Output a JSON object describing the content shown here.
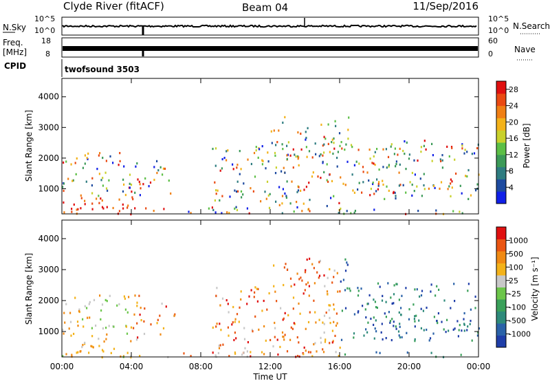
{
  "header": {
    "station": "Clyde River (fitACF)",
    "beam": "Beam 04",
    "date": "11/Sep/2016"
  },
  "strip_panels": {
    "nsky": {
      "label": "N.Sky",
      "ticks": [
        "10^5",
        "10^0"
      ]
    },
    "nsearch": {
      "label": "N.Search",
      "ticks": [
        "10^5",
        "10^0"
      ]
    },
    "freq": {
      "label_line1": "Freq.",
      "label_line2": "[MHz]",
      "ticks": [
        "18",
        "8"
      ]
    },
    "nave": {
      "label": "Nave",
      "ticks": [
        "60",
        "0"
      ]
    },
    "cpid": {
      "label": "CPID",
      "value": "twofsound 3503"
    }
  },
  "chart_data": [
    {
      "type": "heatmap",
      "name": "power",
      "ylabel": "Slant Range [km]",
      "xlabel": "Time UT",
      "x_ticks": [
        "00:00",
        "04:00",
        "08:00",
        "12:00",
        "16:00",
        "20:00",
        "00:00"
      ],
      "xlim_hours": [
        0,
        24
      ],
      "ylim_km": [
        180,
        4600
      ],
      "y_ticks": [
        1000,
        2000,
        3000,
        4000
      ],
      "colorbar": {
        "label": "Power [dB]",
        "range": [
          0,
          30
        ],
        "ticks": [
          "4",
          "8",
          "12",
          "16",
          "20",
          "24",
          "28"
        ],
        "colors": [
          "#1020e8",
          "#1e4ba0",
          "#2e7c80",
          "#3c9a58",
          "#5cbf46",
          "#c9d12c",
          "#f3b21a",
          "#f07f14",
          "#ea4a12",
          "#e01010"
        ]
      }
    },
    {
      "type": "heatmap",
      "name": "velocity",
      "ylabel": "Slant Range [km]",
      "xlabel": "Time UT",
      "x_ticks": [
        "00:00",
        "04:00",
        "08:00",
        "12:00",
        "16:00",
        "20:00",
        "00:00"
      ],
      "xlim_hours": [
        0,
        24
      ],
      "ylim_km": [
        180,
        4600
      ],
      "y_ticks": [
        1000,
        2000,
        3000,
        4000
      ],
      "colorbar": {
        "label": "Velocity [m s⁻¹]",
        "ticks": [
          "1000",
          "500",
          "100",
          "25",
          "-25",
          "-100",
          "-500",
          "-1000"
        ],
        "colors": [
          "#1f3ea8",
          "#2a62a8",
          "#2e8a7a",
          "#3aa05a",
          "#6cc64a",
          "#c8c8c8",
          "#f3b21a",
          "#f08a14",
          "#ea5512",
          "#e01010"
        ]
      }
    }
  ],
  "time_axis_label": "Time UT"
}
